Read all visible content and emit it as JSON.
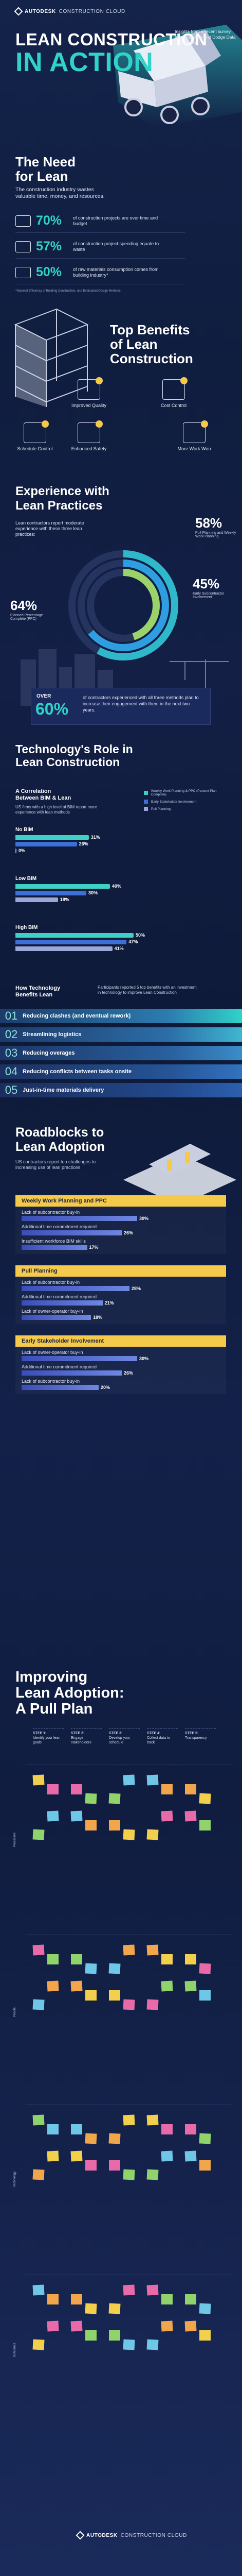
{
  "brand": {
    "name": "AUTODESK",
    "product": "CONSTRUCTION CLOUD"
  },
  "hero": {
    "title_line1": "LEAN CONSTRUCTION",
    "title_line2": "IN ACTION",
    "source_note": "Insights from a recent survey from Autodesk and Dodge Data & Analytics"
  },
  "need": {
    "title_line1": "The Need",
    "title_line2": "for Lean",
    "intro": "The construction industry wastes valuable time, money, and resources.",
    "stats": [
      {
        "value": "70%",
        "desc": "of construction projects are over time and budget",
        "icon": "clock-money-icon"
      },
      {
        "value": "57%",
        "desc": "of construction project spending equate to waste",
        "icon": "waste-money-icon"
      },
      {
        "value": "50%",
        "desc": "of raw materials consumption comes from building industry*",
        "icon": "truck-icon"
      }
    ],
    "footnote": "*National Efficiency of Building Construction, and Evaluation/Design Methods"
  },
  "benefits": {
    "title_line1": "Top Benefits",
    "title_line2": "of Lean",
    "title_line3": "Construction",
    "items": [
      {
        "label": "Improved Quality",
        "icon": "quality-check-icon"
      },
      {
        "label": "Cost Control",
        "icon": "cost-control-icon"
      },
      {
        "label": "Schedule Control",
        "icon": "schedule-icon"
      },
      {
        "label": "Enhanced Safety",
        "icon": "safety-icon"
      },
      {
        "label": "More Work Won",
        "icon": "work-won-icon"
      }
    ]
  },
  "experience": {
    "title_line1": "Experience with",
    "title_line2": "Lean Practices",
    "intro": "Lean contractors report moderate experience with these three lean practices:",
    "rings": [
      {
        "value": "58%",
        "label": "Pull Planning and Weekly Work Planning",
        "color": "#2fb8c9",
        "fraction": 0.58
      },
      {
        "value": "64%",
        "label": "Planned Percentage Complete (PPC)",
        "color": "#2f9ee0",
        "fraction": 0.64
      },
      {
        "value": "45%",
        "label": "Early Subcontractor Involvement",
        "color": "#9ad36a",
        "fraction": 0.45
      }
    ],
    "over_label": "OVER",
    "over_value": "60%",
    "over_desc": "of contractors experienced with all three methods plan to increase their engagement with them in the next two years."
  },
  "tech": {
    "title_line1": "Technology's Role in",
    "title_line2": "Lean Construction",
    "corr_title_line1": "A Correlation",
    "corr_title_line2": "Between BIM & Lean",
    "corr_desc": "US firms with a high level of BIM report more experience with lean methods",
    "legend": [
      {
        "label": "Weekly Work Planning & PPC (Percent Plan Complete)",
        "color": "#3fcfc4"
      },
      {
        "label": "Early Stakeholder Involvement",
        "color": "#3d6fd6"
      },
      {
        "label": "Pull Planning",
        "color": "#9aa7d8"
      }
    ],
    "groups": [
      {
        "name": "No BIM",
        "values": [
          31,
          26,
          0
        ],
        "labels": [
          "31%",
          "26%",
          "0%"
        ]
      },
      {
        "name": "Low BIM",
        "values": [
          40,
          30,
          18
        ],
        "labels": [
          "40%",
          "30%",
          "18%"
        ]
      },
      {
        "name": "High BIM",
        "values": [
          50,
          47,
          41
        ],
        "labels": [
          "50%",
          "47%",
          "41%"
        ]
      }
    ],
    "how_title_line1": "How Technology",
    "how_title_line2": "Benefits Lean",
    "how_desc": "Participants reported 5 top benefits with an investment in technology to improve Lean Construction"
  },
  "tech_benefits": [
    {
      "num": "01",
      "text": "Reducing clashes (and eventual rework)"
    },
    {
      "num": "02",
      "text": "Streamlining logistics"
    },
    {
      "num": "03",
      "text": "Reducing overages"
    },
    {
      "num": "04",
      "text": "Reducing conflicts between tasks onsite"
    },
    {
      "num": "05",
      "text": "Just-in-time materials delivery"
    }
  ],
  "roadblocks": {
    "title_line1": "Roadblocks to",
    "title_line2": "Lean Adoption",
    "intro": "US contractors report top challenges to increasing use of lean practices",
    "groups": [
      {
        "head": "Weekly Work Planning and PPC",
        "items": [
          {
            "label": "Lack of subcontractor buy-in",
            "value": 30,
            "text": "30%"
          },
          {
            "label": "Additional time commitment required",
            "value": 26,
            "text": "26%"
          },
          {
            "label": "Insufficient workforce BIM skills",
            "value": 17,
            "text": "17%"
          }
        ]
      },
      {
        "head": "Pull Planning",
        "items": [
          {
            "label": "Lack of subcontractor buy-in",
            "value": 28,
            "text": "28%"
          },
          {
            "label": "Additional time commitment required",
            "value": 21,
            "text": "21%"
          },
          {
            "label": "Lack of owner-operator buy-in",
            "value": 18,
            "text": "18%"
          }
        ]
      },
      {
        "head": "Early Stakeholder Involvement",
        "items": [
          {
            "label": "Lack of owner-operator buy-in",
            "value": 30,
            "text": "30%"
          },
          {
            "label": "Additional time commitment required",
            "value": 26,
            "text": "26%"
          },
          {
            "label": "Lack of subcontractor buy-in",
            "value": 20,
            "text": "20%"
          }
        ]
      }
    ]
  },
  "pull_plan": {
    "title_line1": "Improving",
    "title_line2": "Lean Adoption:",
    "title_line3": "A Pull Plan",
    "steps": [
      {
        "label": "STEP 1:",
        "desc": "Identify your lean goals"
      },
      {
        "label": "STEP 2:",
        "desc": "Engage stakeholders"
      },
      {
        "label": "STEP 3:",
        "desc": "Develop your schedule"
      },
      {
        "label": "STEP 4:",
        "desc": "Collect data to track"
      },
      {
        "label": "STEP 5:",
        "desc": "Transparency"
      }
    ],
    "rows": [
      "Processes",
      "People",
      "Technology",
      "Outcomes"
    ],
    "sticky_colors": [
      "#f2d04b",
      "#e86aa8",
      "#8fd36a",
      "#6fc7e8",
      "#f2a64b"
    ]
  },
  "footer": {
    "name": "AUTODESK",
    "product": "CONSTRUCTION CLOUD"
  },
  "colors": {
    "accent": "#2fd3c8",
    "yellow": "#f5c94a",
    "navy": "#14234a"
  }
}
